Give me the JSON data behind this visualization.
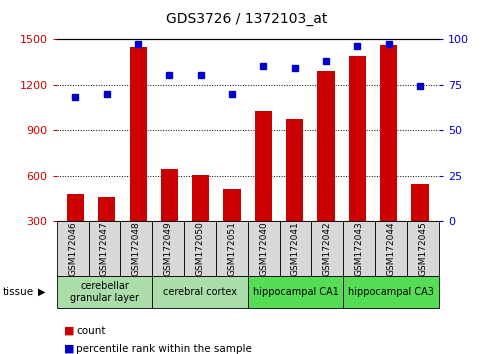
{
  "title": "GDS3726 / 1372103_at",
  "samples": [
    "GSM172046",
    "GSM172047",
    "GSM172048",
    "GSM172049",
    "GSM172050",
    "GSM172051",
    "GSM172040",
    "GSM172041",
    "GSM172042",
    "GSM172043",
    "GSM172044",
    "GSM172045"
  ],
  "counts": [
    480,
    460,
    1450,
    645,
    605,
    510,
    1025,
    970,
    1290,
    1390,
    1460,
    545
  ],
  "percentiles": [
    68,
    70,
    97,
    80,
    80,
    70,
    85,
    84,
    88,
    96,
    97,
    74
  ],
  "ylim_left": [
    300,
    1500
  ],
  "ylim_right": [
    0,
    100
  ],
  "yticks_left": [
    300,
    600,
    900,
    1200,
    1500
  ],
  "yticks_right": [
    0,
    25,
    50,
    75,
    100
  ],
  "bar_color": "#cc0000",
  "dot_color": "#0000cc",
  "tissue_groups": [
    {
      "label": "cerebellar\ngranular layer",
      "start": 0,
      "end": 3,
      "color": "#aaddaa"
    },
    {
      "label": "cerebral cortex",
      "start": 3,
      "end": 6,
      "color": "#aaddaa"
    },
    {
      "label": "hippocampal CA1",
      "start": 6,
      "end": 9,
      "color": "#55dd55"
    },
    {
      "label": "hippocampal CA3",
      "start": 9,
      "end": 12,
      "color": "#55dd55"
    }
  ],
  "legend_count_label": "count",
  "legend_pct_label": "percentile rank within the sample",
  "tissue_label": "tissue",
  "bar_color_legend": "#cc0000",
  "dot_color_legend": "#0000cc",
  "left_tick_color": "#cc0000",
  "right_tick_color": "#0000cc",
  "sample_box_color": "#d8d8d8",
  "background_color": "#ffffff",
  "grid_dotted_levels": [
    600,
    900,
    1200
  ]
}
